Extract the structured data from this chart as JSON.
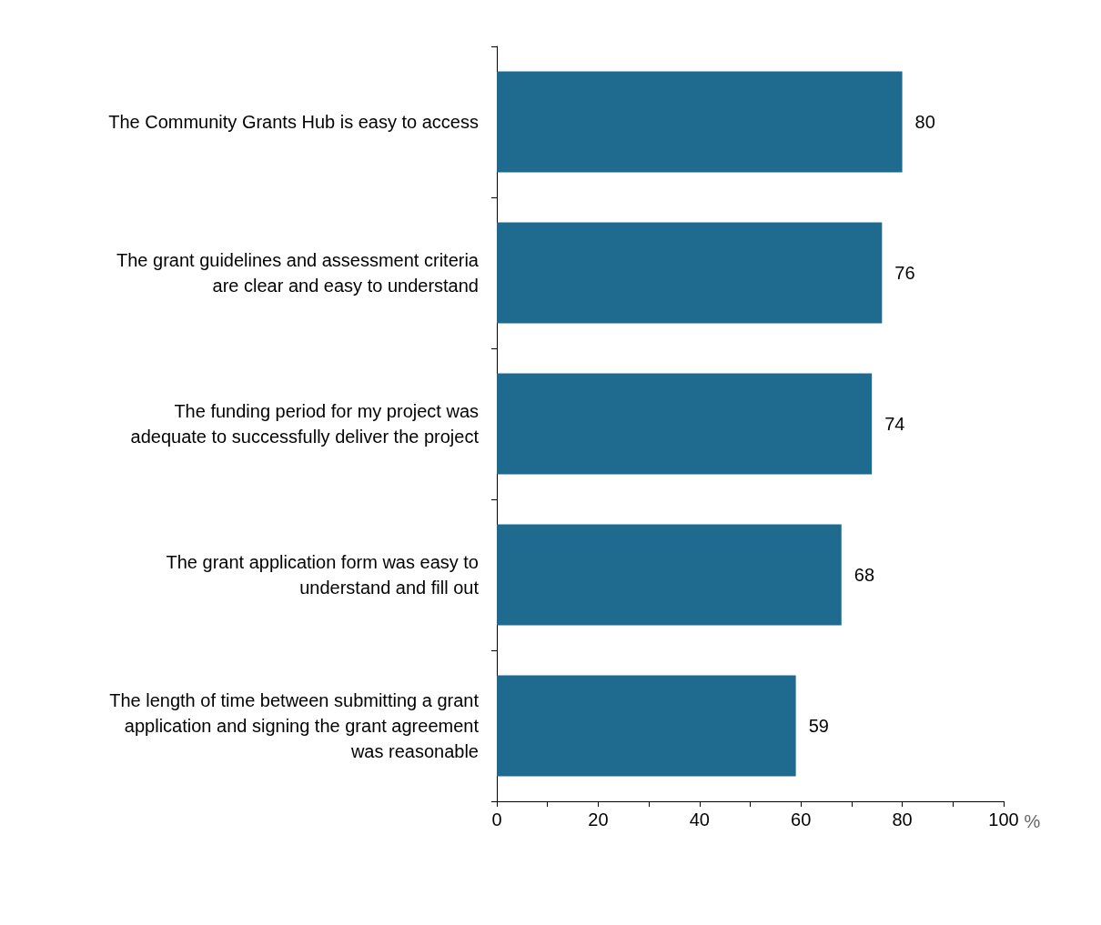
{
  "chart_data": {
    "type": "bar",
    "orientation": "horizontal",
    "xlabel": "%",
    "categories": [
      "The Community Grants Hub is easy to access",
      "The grant guidelines and assessment criteria\nare clear and easy to understand",
      "The funding period for my project was\nadequate to successfully deliver the project",
      "The grant application form was easy to\nunderstand and fill out",
      "The length of time between submitting a grant\napplication and signing the grant agreement\nwas reasonable"
    ],
    "values": [
      80,
      76,
      74,
      68,
      59
    ],
    "color": "#1f6a8f",
    "data_labels": true,
    "xlim": [
      0,
      100
    ],
    "xticks": [
      0,
      {
        "value": 10,
        "label": null
      },
      20,
      {
        "value": 30,
        "label": null
      },
      40,
      {
        "value": 50,
        "label": null
      },
      60,
      {
        "value": 70,
        "label": null
      },
      80,
      {
        "value": 90,
        "label": null
      },
      100
    ]
  }
}
